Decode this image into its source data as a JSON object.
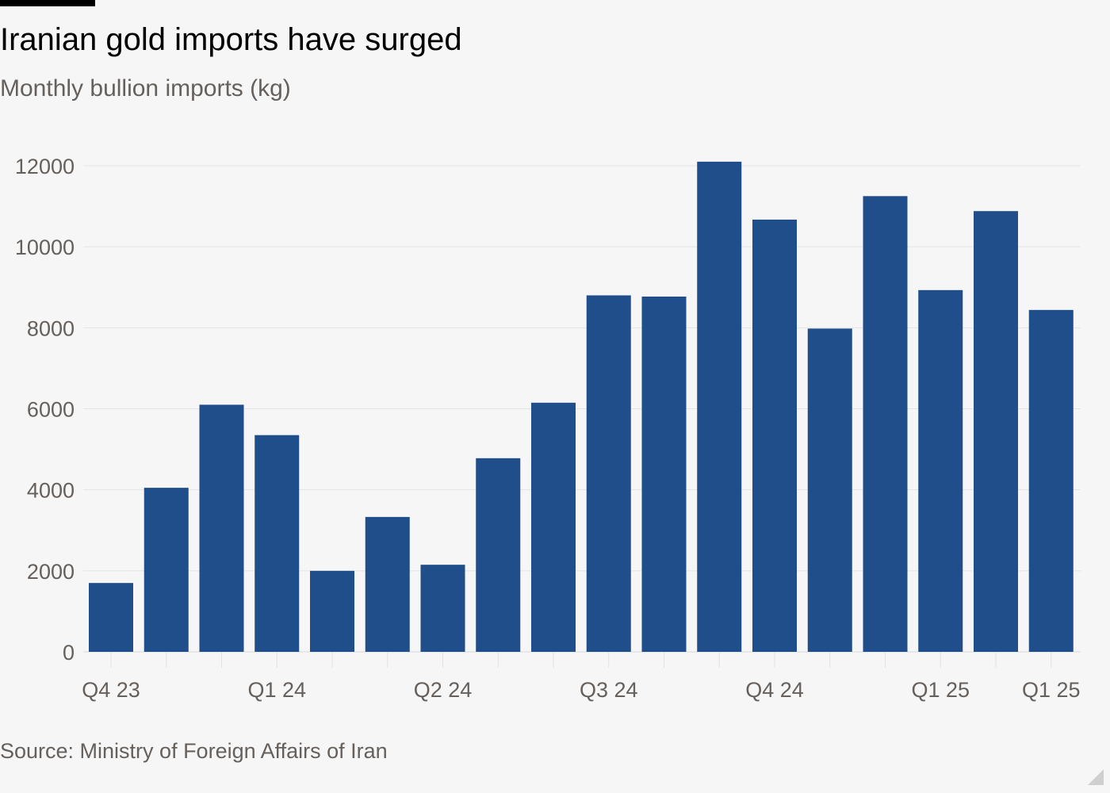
{
  "header": {
    "title": "Iranian gold imports have surged",
    "subtitle": "Monthly bullion imports (kg)"
  },
  "footer": {
    "source": "Source: Ministry of Foreign Affairs of Iran"
  },
  "colors": {
    "bar": "#1f4e8a",
    "gridline": "#e4e4e4",
    "axis_text": "#66605c",
    "background": "#f6f6f6"
  },
  "chart_data": {
    "type": "bar",
    "title": "Iranian gold imports have surged",
    "subtitle": "Monthly bullion imports (kg)",
    "ylabel": "",
    "xlabel": "",
    "ylim": [
      0,
      12000
    ],
    "yticks": [
      0,
      2000,
      4000,
      6000,
      8000,
      10000,
      12000
    ],
    "grid": true,
    "legend": "none",
    "values": [
      1700,
      4050,
      6100,
      5350,
      2000,
      3330,
      2150,
      4780,
      6150,
      8800,
      8770,
      12100,
      10670,
      7980,
      11250,
      8930,
      10880,
      8440
    ],
    "xtick_labels": [
      {
        "bar_index": 0,
        "label": "Q4 23"
      },
      {
        "bar_index": 3,
        "label": "Q1 24"
      },
      {
        "bar_index": 6,
        "label": "Q2 24"
      },
      {
        "bar_index": 9,
        "label": "Q3 24"
      },
      {
        "bar_index": 12,
        "label": "Q4 24"
      },
      {
        "bar_index": 15,
        "label": "Q1 25"
      },
      {
        "bar_index": 17,
        "label": "Q1 25"
      }
    ]
  }
}
